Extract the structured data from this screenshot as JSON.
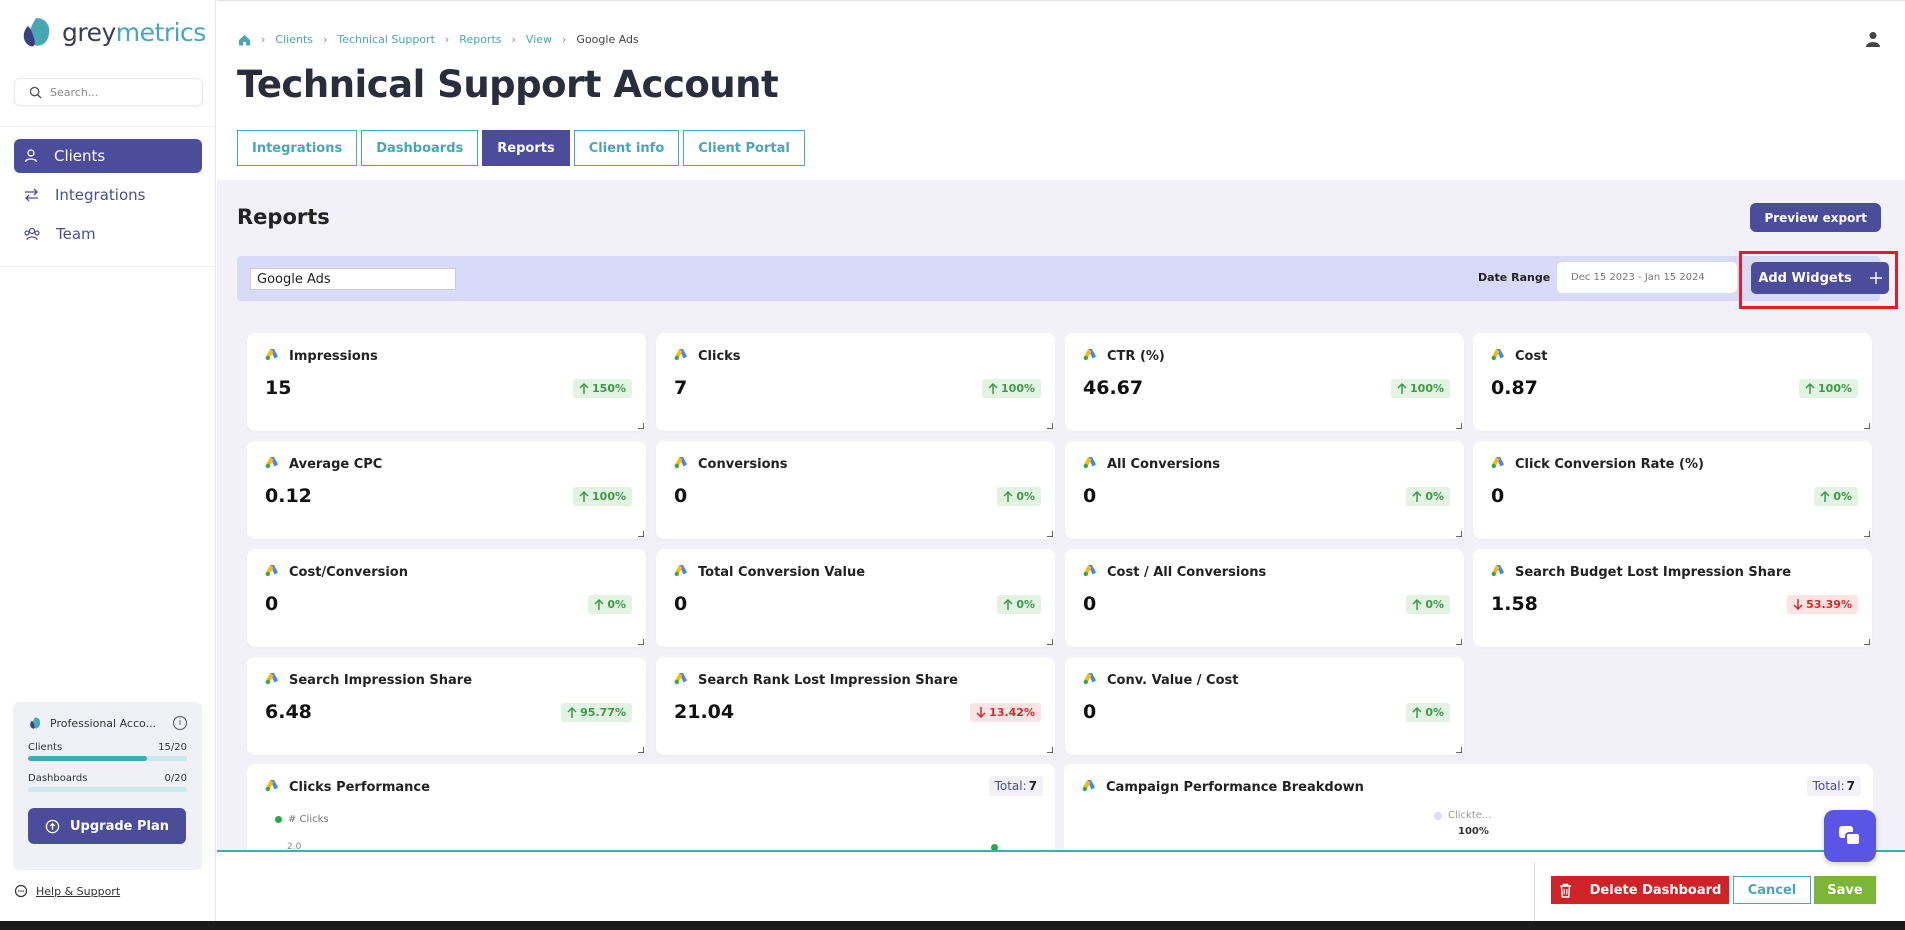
{
  "logo": {
    "part1": "grey",
    "part2": "metrics"
  },
  "search": {
    "placeholder": "Search..."
  },
  "nav": [
    {
      "label": "Clients",
      "icon": "user-icon"
    },
    {
      "label": "Integrations",
      "icon": "arrows-icon"
    },
    {
      "label": "Team",
      "icon": "team-icon"
    }
  ],
  "plan": {
    "name": "Professional Acco...",
    "clients_label": "Clients",
    "clients_count": "15/20",
    "clients_fraction": 0.75,
    "dashboards_label": "Dashboards",
    "dashboards_count": "0/20",
    "dashboards_fraction": 0,
    "upgrade_label": "Upgrade Plan"
  },
  "help": {
    "label": "Help & Support"
  },
  "breadcrumb": [
    "Clients",
    "Technical Support",
    "Reports",
    "View",
    "Google Ads"
  ],
  "page_title": "Technical Support Account",
  "tabs": [
    {
      "label": "Integrations",
      "active": false
    },
    {
      "label": "Dashboards",
      "active": false
    },
    {
      "label": "Reports",
      "active": true
    },
    {
      "label": "Client info",
      "active": false
    },
    {
      "label": "Client Portal",
      "active": false
    }
  ],
  "section_title": "Reports",
  "preview_export": "Preview export",
  "report_name": "Google Ads",
  "date_range": {
    "label": "Date Range",
    "value": "Dec 15 2023 - Jan 15 2024"
  },
  "add_widgets": "Add Widgets",
  "metrics": [
    {
      "title": "Impressions",
      "value": "15",
      "change": "150%",
      "dir": "up"
    },
    {
      "title": "Clicks",
      "value": "7",
      "change": "100%",
      "dir": "up"
    },
    {
      "title": "CTR (%)",
      "value": "46.67",
      "change": "100%",
      "dir": "up"
    },
    {
      "title": "Cost",
      "value": "0.87",
      "change": "100%",
      "dir": "up"
    },
    {
      "title": "Average CPC",
      "value": "0.12",
      "change": "100%",
      "dir": "up"
    },
    {
      "title": "Conversions",
      "value": "0",
      "change": "0%",
      "dir": "up"
    },
    {
      "title": "All Conversions",
      "value": "0",
      "change": "0%",
      "dir": "up"
    },
    {
      "title": "Click Conversion Rate (%)",
      "value": "0",
      "change": "0%",
      "dir": "up"
    },
    {
      "title": "Cost/Conversion",
      "value": "0",
      "change": "0%",
      "dir": "up"
    },
    {
      "title": "Total Conversion Value",
      "value": "0",
      "change": "0%",
      "dir": "up"
    },
    {
      "title": "Cost / All Conversions",
      "value": "0",
      "change": "0%",
      "dir": "up"
    },
    {
      "title": "Search Budget Lost Impression Share",
      "value": "1.58",
      "change": "53.39%",
      "dir": "down"
    },
    {
      "title": "Search Impression Share",
      "value": "6.48",
      "change": "95.77%",
      "dir": "up"
    },
    {
      "title": "Search Rank Lost Impression Share",
      "value": "21.04",
      "change": "13.42%",
      "dir": "down"
    },
    {
      "title": "Conv. Value / Cost",
      "value": "0",
      "change": "0%",
      "dir": "up"
    }
  ],
  "clicks_performance": {
    "title": "Clicks Performance",
    "total_label": "Total:",
    "total_value": "7",
    "legend": "# Clicks",
    "y_tick": "2.0"
  },
  "campaign_breakdown": {
    "title": "Campaign Performance Breakdown",
    "total_label": "Total:",
    "total_value": "7",
    "legend": "Clickte...",
    "percent": "100%"
  },
  "bottom": {
    "delete": "Delete Dashboard",
    "cancel": "Cancel",
    "save": "Save"
  },
  "colors": {
    "primary": "#4b4d9a",
    "teal": "#48a7b5",
    "danger": "#cf2427",
    "success": "#7cb53a",
    "highlight": "#e41c28"
  }
}
